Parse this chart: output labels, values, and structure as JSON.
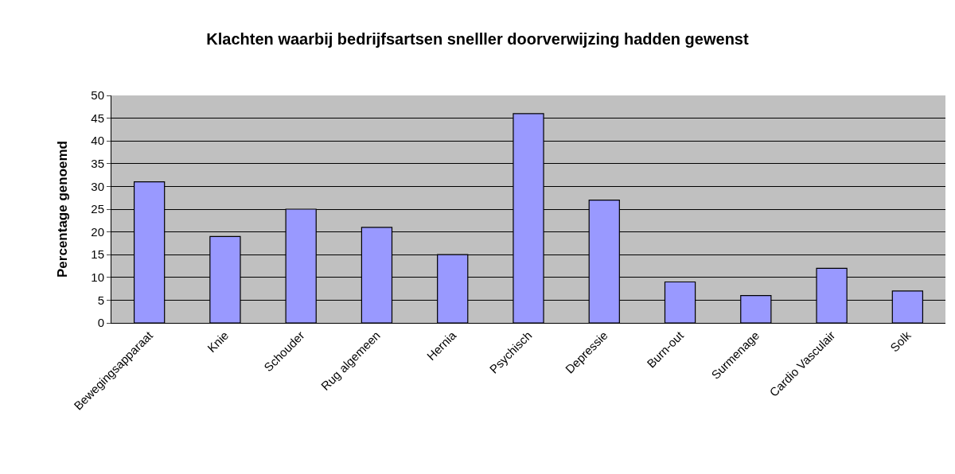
{
  "chart_data": {
    "type": "bar",
    "title": "Klachten waarbij bedrijfsartsen snelller doorverwijzing hadden gewenst",
    "ylabel": "Percentage genoemd",
    "categories": [
      "Bewegingsapparaat",
      "Knie",
      "Schouder",
      "Rug algemeen",
      "Hernia",
      "Psychisch",
      "Depressie",
      "Burn-out",
      "Surmenage",
      "Cardio Vasculair",
      "Solk"
    ],
    "values": [
      31,
      19,
      25,
      21,
      15,
      46,
      27,
      9,
      6,
      12,
      7
    ],
    "color": "#9999ff",
    "ylim": [
      0,
      50
    ],
    "yticks": [
      0,
      5,
      10,
      15,
      20,
      25,
      30,
      35,
      40,
      45,
      50
    ],
    "grid": "y"
  }
}
